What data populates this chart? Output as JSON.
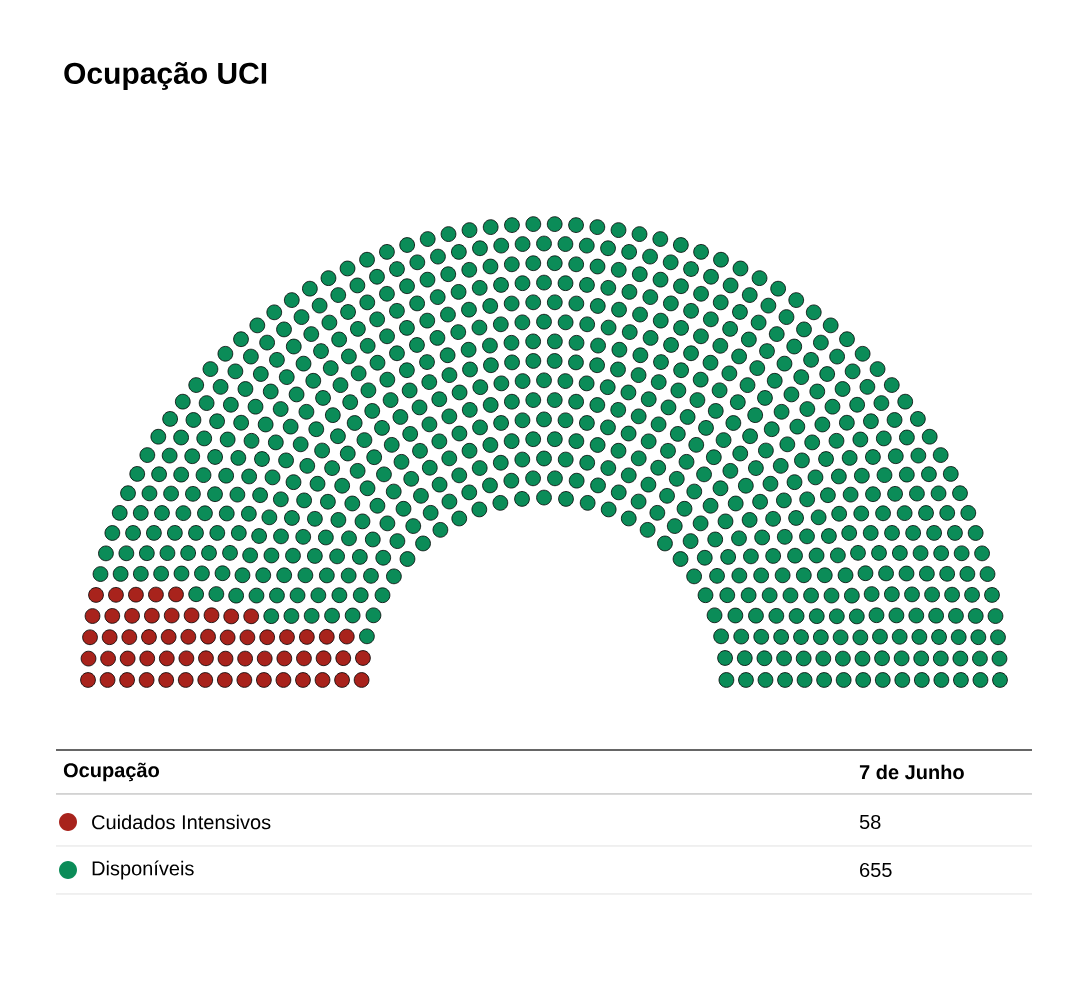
{
  "chart_data": {
    "type": "other",
    "title": "Ocupação UCI",
    "legend_title": "Ocupação",
    "categories": [
      "Cuidados Intensivos",
      "Disponíveis"
    ],
    "series": [
      {
        "name": "7 de Junho",
        "values": [
          58,
          655
        ],
        "colors": [
          "#a8231c",
          "#0b8c58"
        ]
      }
    ],
    "data_labels": true
  }
}
